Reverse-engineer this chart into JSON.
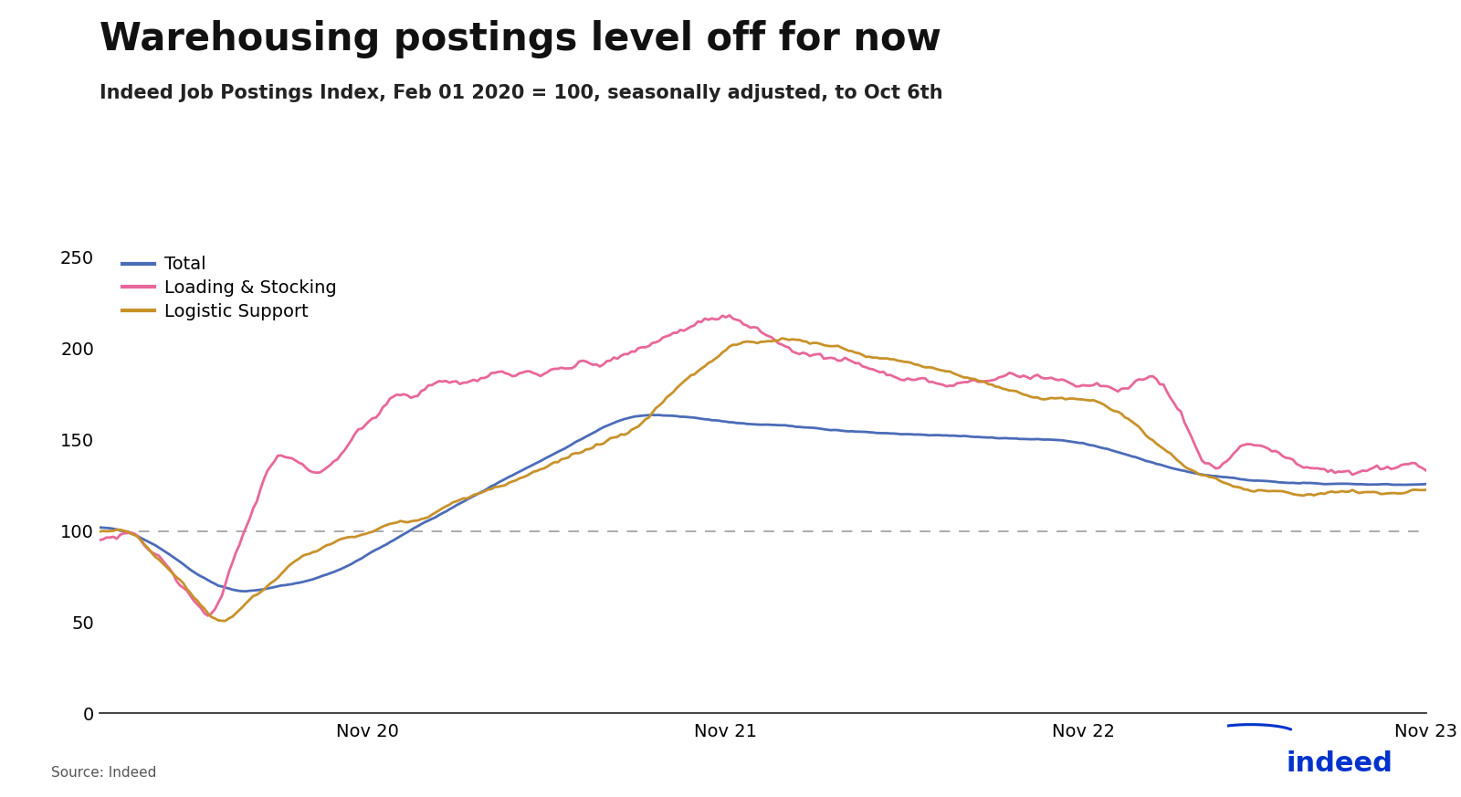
{
  "title": "Warehousing postings level off for now",
  "subtitle": "Indeed Job Postings Index, Feb 01 2020 = 100, seasonally adjusted, to Oct 6th",
  "source": "Source: Indeed",
  "line_colors": {
    "Total": "#4B6CB7",
    "Loading & Stocking": "#E8679A",
    "Logistic Support": "#C8922A"
  },
  "ylim": [
    0,
    260
  ],
  "yticks": [
    0,
    50,
    100,
    150,
    200,
    250
  ],
  "x_tick_months": [
    9,
    21,
    33,
    44.5
  ],
  "x_labels": [
    "Nov 20",
    "Nov 21",
    "Nov 22",
    "Nov 23"
  ],
  "total_months": 44.5,
  "background_color": "#FFFFFF",
  "title_fontsize": 30,
  "subtitle_fontsize": 15,
  "tick_fontsize": 14,
  "legend_fontsize": 14,
  "line_width": 2.0,
  "indeed_blue": "#0033CC",
  "hline_y": 100
}
